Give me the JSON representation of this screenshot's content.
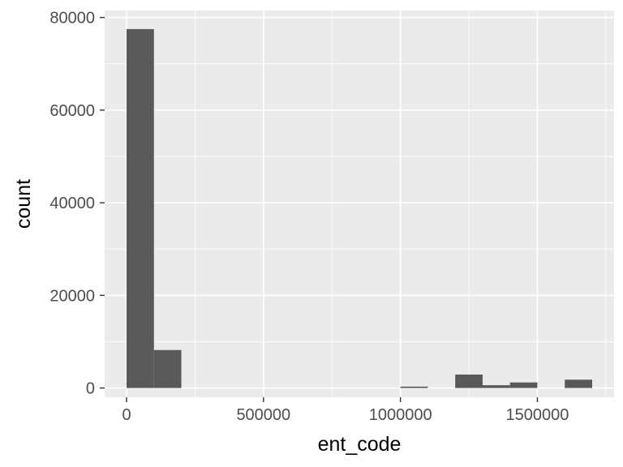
{
  "chart_data": {
    "type": "bar",
    "subtype": "histogram",
    "title": "",
    "xlabel": "ent_code",
    "ylabel": "count",
    "xlim": [
      -80000,
      1780000
    ],
    "ylim": [
      -2000,
      81500
    ],
    "bin_width": 100000,
    "bins": [
      {
        "start": 0,
        "end": 100000,
        "count": 77500
      },
      {
        "start": 100000,
        "end": 200000,
        "count": 8200
      },
      {
        "start": 1000000,
        "end": 1100000,
        "count": 300
      },
      {
        "start": 1200000,
        "end": 1300000,
        "count": 2900
      },
      {
        "start": 1300000,
        "end": 1400000,
        "count": 600
      },
      {
        "start": 1400000,
        "end": 1500000,
        "count": 1200
      },
      {
        "start": 1600000,
        "end": 1700000,
        "count": 1800
      }
    ],
    "x_ticks": [
      0,
      500000,
      1000000,
      1500000
    ],
    "x_tick_labels": [
      "0",
      "500000",
      "1000000",
      "1500000"
    ],
    "y_ticks": [
      0,
      20000,
      40000,
      60000,
      80000
    ],
    "y_tick_labels": [
      "0",
      "20000",
      "40000",
      "60000",
      "80000"
    ],
    "grid": true,
    "colors": {
      "panel_background": "#EBEBEB",
      "grid_major": "#FFFFFF",
      "bar_fill": "#595959",
      "tick_label": "#4D4D4D",
      "tick_mark": "#333333",
      "axis_title": "#000000"
    }
  }
}
